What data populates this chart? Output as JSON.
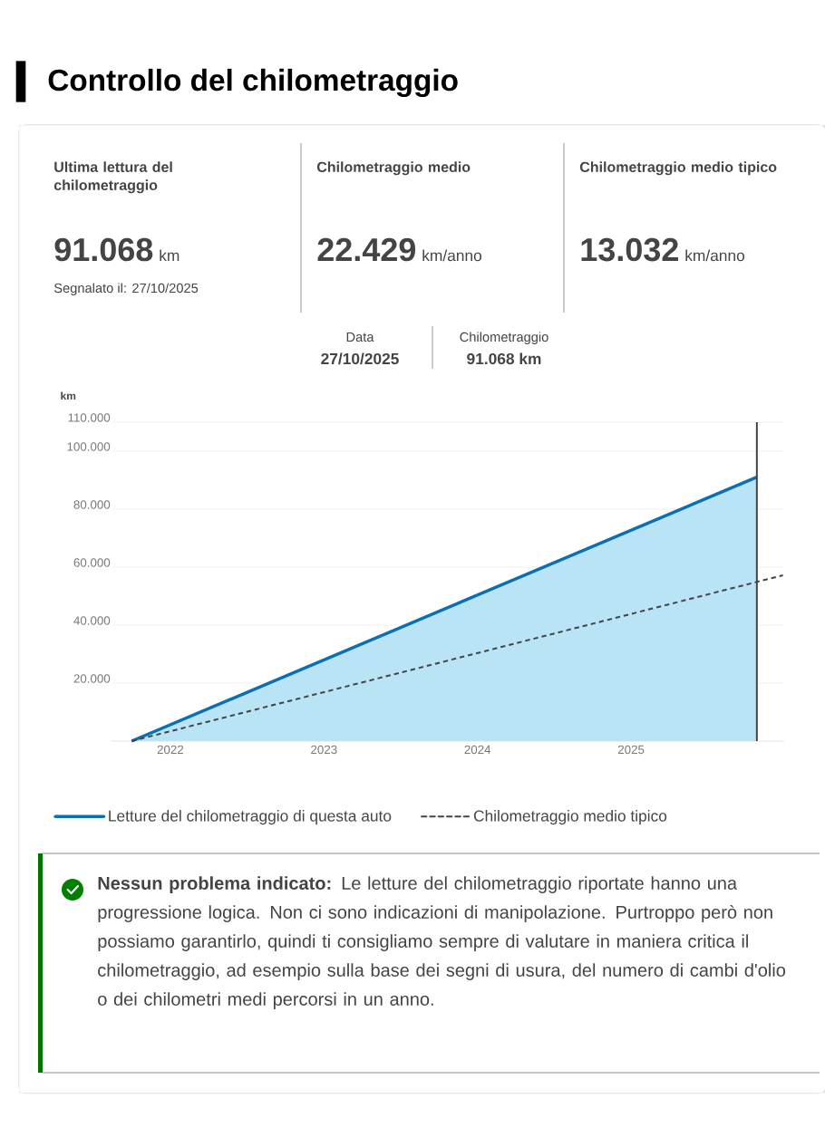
{
  "chart_data": {
    "type": "area",
    "title": "Controllo del chilometraggio",
    "ylabel": "km",
    "series": [
      {
        "name": "Letture del chilometraggio di questa auto",
        "color": "#0a6fb3",
        "x": [
          "2021-10-01",
          "2025-10-27"
        ],
        "values": [
          0,
          91068
        ]
      },
      {
        "name": "Chilometraggio medio tipico",
        "type": "line",
        "line_style": "dashed",
        "color": "#444444",
        "x": [
          "2021-10-01",
          "2025-12-28"
        ],
        "values": [
          0,
          57200
        ]
      }
    ],
    "xlim": [
      "2021-08-12",
      "2025-12-31"
    ],
    "xticks": [
      "2022",
      "2023",
      "2024",
      "2025"
    ],
    "ylim": [
      0,
      110000
    ],
    "yticks": [
      {
        "value": 20000,
        "label": "20.000"
      },
      {
        "value": 40000,
        "label": "40.000"
      },
      {
        "value": 60000,
        "label": "60.000"
      },
      {
        "value": 80000,
        "label": "80.000"
      },
      {
        "value": 100000,
        "label": "100.000"
      },
      {
        "value": 110000,
        "label": "110.000"
      }
    ],
    "grid": "y",
    "legend": "bottom",
    "ref_lines": [
      {
        "axis": "x",
        "value": "2025-10-27",
        "color": "#444444"
      }
    ],
    "annotations": [
      "Ultima lettura del chilometraggio",
      "91.068",
      "km",
      "Segnalato il: 27/10/2025",
      "Chilometraggio medio",
      "22.429",
      "km/anno",
      "Chilometraggio medio tipico",
      "13.032",
      "km/anno",
      "Data",
      "27/10/2025",
      "Chilometraggio",
      "91.068 km",
      "**Nessun problema indicato:** Le letture del chilometraggio riportate hanno una progressione logica. Non ci sono indicazioni di manipolazione. Purtroppo però non possiamo garantirlo, quindi ti consigliamo sempre di valutare in maniera critica il chilometraggio, ad esempio sulla base dei segni di usura, del numero di cambi d'olio o dei chilometri medi percorsi in un anno."
    ]
  }
}
